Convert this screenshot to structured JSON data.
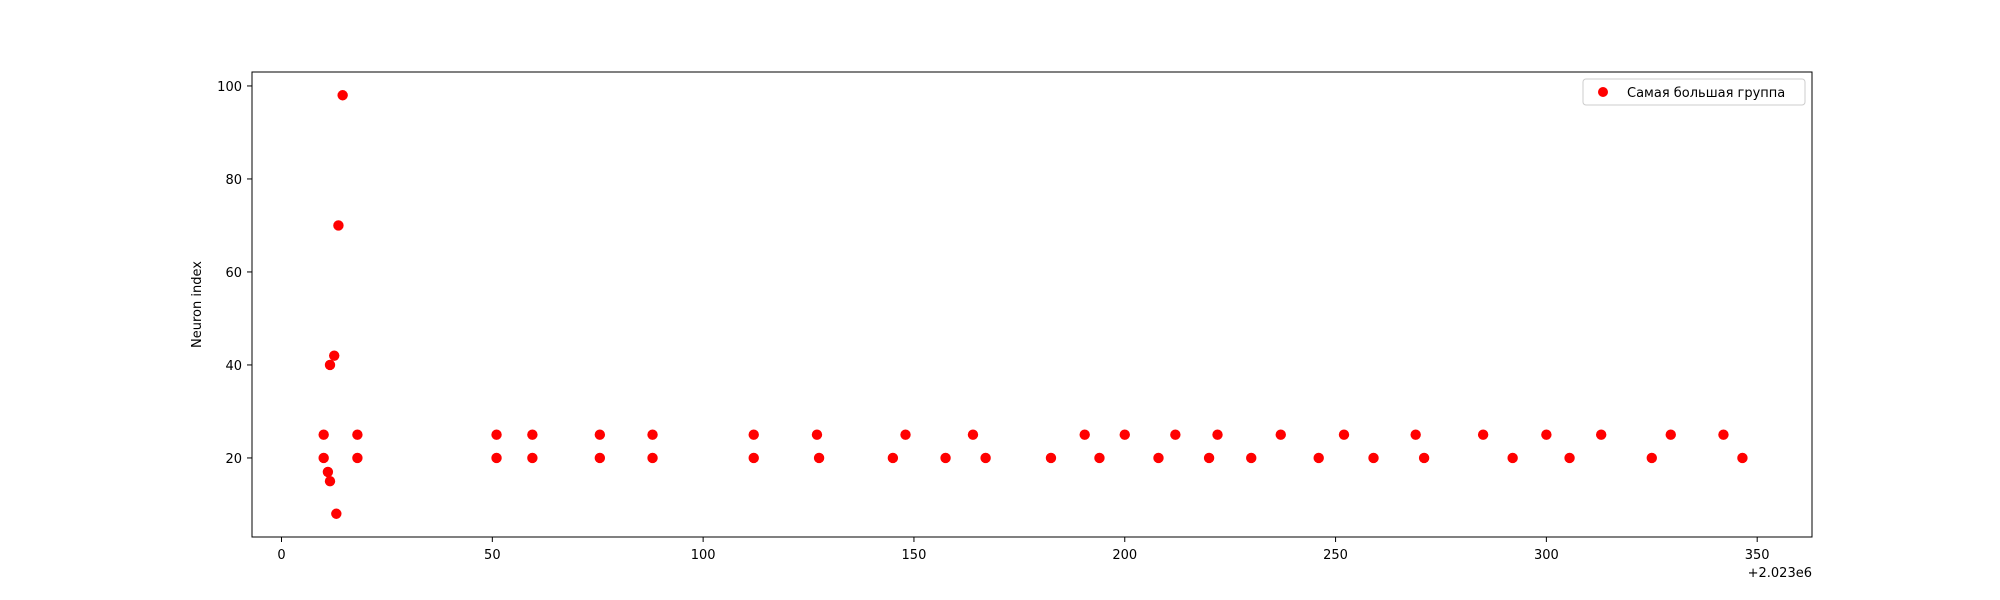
{
  "chart_data": {
    "type": "scatter",
    "title": "",
    "xlabel": "",
    "ylabel": "Neuron index",
    "x_offset_label": "+2.023e6",
    "xlim": [
      -7,
      363
    ],
    "ylim": [
      3,
      103
    ],
    "xticks": [
      0,
      50,
      100,
      150,
      200,
      250,
      300,
      350
    ],
    "yticks": [
      20,
      40,
      60,
      80,
      100
    ],
    "grid": false,
    "legend_position": "top-right",
    "series": [
      {
        "name": "Самая большая группа",
        "color": "#ff0000",
        "points": [
          [
            10,
            25
          ],
          [
            10,
            20
          ],
          [
            11,
            17
          ],
          [
            11.5,
            15
          ],
          [
            11.5,
            40
          ],
          [
            12.5,
            42
          ],
          [
            13,
            8
          ],
          [
            13.5,
            70
          ],
          [
            14.5,
            98
          ],
          [
            18,
            25
          ],
          [
            18,
            20
          ],
          [
            51,
            25
          ],
          [
            51,
            20
          ],
          [
            59.5,
            25
          ],
          [
            59.5,
            20
          ],
          [
            75.5,
            25
          ],
          [
            75.5,
            20
          ],
          [
            88,
            25
          ],
          [
            88,
            20
          ],
          [
            112,
            25
          ],
          [
            112,
            20
          ],
          [
            127,
            25
          ],
          [
            127.5,
            20
          ],
          [
            145,
            20
          ],
          [
            148,
            25
          ],
          [
            157.5,
            20
          ],
          [
            164,
            25
          ],
          [
            167,
            20
          ],
          [
            182.5,
            20
          ],
          [
            190.5,
            25
          ],
          [
            194,
            20
          ],
          [
            200,
            25
          ],
          [
            208,
            20
          ],
          [
            212,
            25
          ],
          [
            220,
            20
          ],
          [
            222,
            25
          ],
          [
            230,
            20
          ],
          [
            237,
            25
          ],
          [
            246,
            20
          ],
          [
            252,
            25
          ],
          [
            259,
            20
          ],
          [
            269,
            25
          ],
          [
            271,
            20
          ],
          [
            285,
            25
          ],
          [
            292,
            20
          ],
          [
            300,
            25
          ],
          [
            305.5,
            20
          ],
          [
            313,
            25
          ],
          [
            325,
            20
          ],
          [
            329.5,
            25
          ],
          [
            342,
            25
          ],
          [
            346.5,
            20
          ]
        ]
      }
    ]
  }
}
